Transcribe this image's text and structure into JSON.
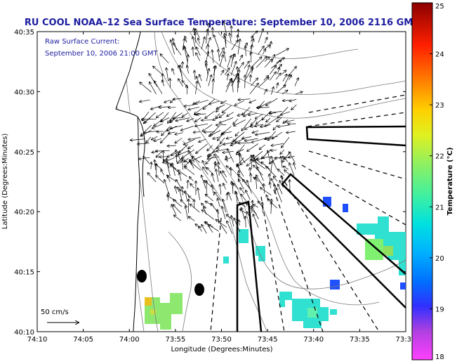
{
  "title": "RU COOL  NOAA–12  Sea Surface Temperature:  September 10, 2006 2116 GMT",
  "annotation": {
    "line1": "Raw Surface Current:",
    "line2": "September 10, 2006 21:00 GMT"
  },
  "scale_label": "50 cm/s",
  "x_axis": {
    "label": "Longitude (Degrees:Minutes)",
    "ticks": [
      "74:10",
      "74:05",
      "74:00",
      "73:55",
      "73:50",
      "73:45",
      "73:40",
      "73:35",
      "73:3"
    ]
  },
  "y_axis": {
    "label": "Latitude (Degrees:Minutes)",
    "ticks": [
      "40:35",
      "40:30",
      "40:25",
      "40:20",
      "40:15",
      "40:10"
    ]
  },
  "colorbar": {
    "label": "Temperature (°C)",
    "ticks": [
      "25",
      "24",
      "23",
      "22",
      "21",
      "20",
      "19",
      "18"
    ],
    "range": [
      18,
      25
    ]
  },
  "colors": {
    "title": "#1c1ca0",
    "land": "#ffffff",
    "coast": "#000000",
    "bathymetry": "#7a7a7a"
  }
}
